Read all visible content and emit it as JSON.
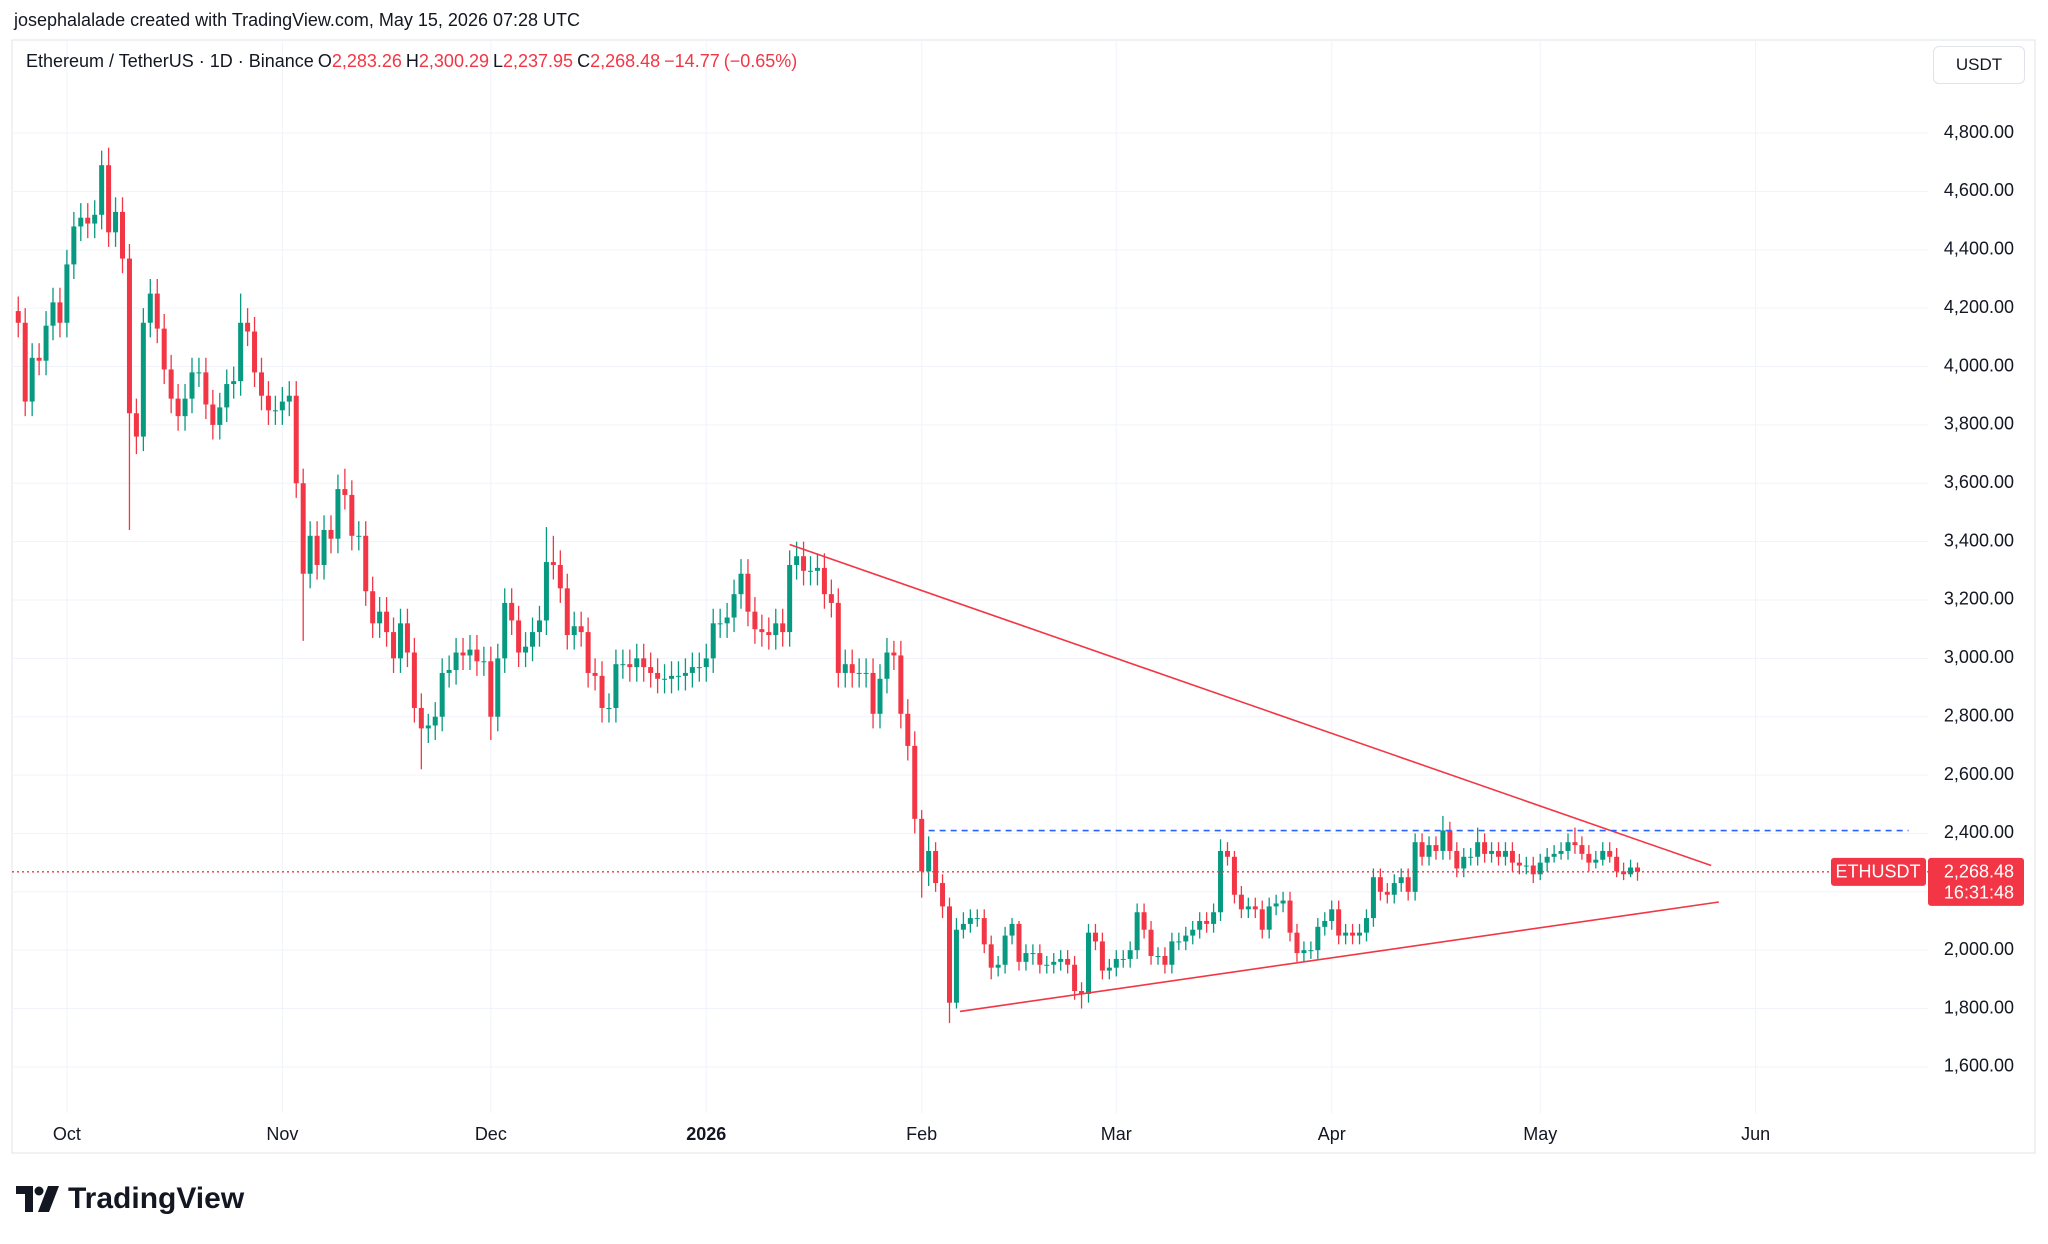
{
  "header": {
    "attribution": "josephalalade created with TradingView.com, May 15, 2026 07:28 UTC"
  },
  "footer": {
    "logo": "TradingView"
  },
  "chart_data": {
    "type": "candlestick",
    "title": "Ethereum / TetherUS · 1D · Binance",
    "currency": "USDT",
    "ohlc": [
      {
        "key": "O",
        "value": 2283.26,
        "label": "2,283.26"
      },
      {
        "key": "H",
        "value": 2300.29,
        "label": "2,300.29"
      },
      {
        "key": "L",
        "value": 2237.95,
        "label": "2,237.95"
      },
      {
        "key": "C",
        "value": 2268.48,
        "label": "2,268.48"
      }
    ],
    "change": {
      "value": -14.77,
      "label": "−14.77"
    },
    "change_pct": {
      "value": -0.65,
      "label": "(−0.65%)"
    },
    "last_price": {
      "symbol": "ETHUSDT",
      "value": 2268.48,
      "label": "2,268.48",
      "countdown": "16:31:48"
    },
    "up_color": "#089981",
    "down_color": "#f23645",
    "grid": true,
    "xlim": [
      -0.9,
      274.8
    ],
    "ylim": [
      1442,
      5119
    ],
    "xticks": [
      {
        "value": 7,
        "label": "Oct"
      },
      {
        "value": 38,
        "label": "Nov"
      },
      {
        "value": 68,
        "label": "Dec"
      },
      {
        "value": 99,
        "label": "2026"
      },
      {
        "value": 130,
        "label": "Feb"
      },
      {
        "value": 158,
        "label": "Mar"
      },
      {
        "value": 189,
        "label": "Apr"
      },
      {
        "value": 219,
        "label": "May"
      },
      {
        "value": 250,
        "label": "Jun"
      }
    ],
    "yticks": [
      {
        "value": 1600,
        "label": "1,600.00"
      },
      {
        "value": 1800,
        "label": "1,800.00"
      },
      {
        "value": 2000,
        "label": "2,000.00"
      },
      {
        "value": 2200,
        "label": "2,200.00"
      },
      {
        "value": 2400,
        "label": "2,400.00"
      },
      {
        "value": 2600,
        "label": "2,600.00"
      },
      {
        "value": 2800,
        "label": "2,800.00"
      },
      {
        "value": 3000,
        "label": "3,000.00"
      },
      {
        "value": 3200,
        "label": "3,200.00"
      },
      {
        "value": 3400,
        "label": "3,400.00"
      },
      {
        "value": 3600,
        "label": "3,600.00"
      },
      {
        "value": 3800,
        "label": "3,800.00"
      },
      {
        "value": 4000,
        "label": "4,000.00"
      },
      {
        "value": 4200,
        "label": "4,200.00"
      },
      {
        "value": 4400,
        "label": "4,400.00"
      },
      {
        "value": 4600,
        "label": "4,600.00"
      },
      {
        "value": 4800,
        "label": "4,800.00"
      }
    ],
    "open": [
      4190,
      4150,
      3880,
      4030,
      4020,
      4140,
      4220,
      4150,
      4350,
      4480,
      4510,
      4490,
      4520,
      4690,
      4460,
      4530,
      4370,
      3840,
      3760,
      4150,
      4250,
      4130,
      3990,
      3890,
      3830,
      3890,
      3980,
      3980,
      3870,
      3800,
      3860,
      3940,
      3950,
      4150,
      4120,
      3980,
      3900,
      3850,
      3850,
      3880,
      3900,
      3600,
      3290,
      3420,
      3320,
      3440,
      3410,
      3580,
      3560,
      3420,
      3420,
      3230,
      3120,
      3160,
      3090,
      3000,
      3120,
      3020,
      2830,
      2760,
      2770,
      2800,
      2950,
      2960,
      3020,
      3010,
      3030,
      2990,
      2990,
      2800,
      3000,
      3190,
      3130,
      3020,
      3040,
      3090,
      3130,
      3330,
      3320,
      3240,
      3080,
      3110,
      3090,
      2950,
      2940,
      2830,
      2830,
      2980,
      2980,
      2970,
      3000,
      2970,
      2950,
      2930,
      2930,
      2940,
      2940,
      2950,
      2970,
      2970,
      3000,
      3120,
      3120,
      3140,
      3220,
      3290,
      3160,
      3100,
      3090,
      3080,
      3120,
      3090,
      3320,
      3350,
      3300,
      3300,
      3310,
      3220,
      3190,
      2950,
      2980,
      2950,
      2950,
      2950,
      2810,
      2930,
      3020,
      3010,
      2810,
      2700,
      2450,
      2270,
      2340,
      2230,
      2150,
      1820,
      2070,
      2090,
      2110,
      2110,
      2020,
      1940,
      1950,
      2050,
      2090,
      1960,
      1990,
      1990,
      1950,
      1950,
      1960,
      1970,
      1950,
      1860,
      1850,
      2060,
      2030,
      1930,
      1940,
      1970,
      1970,
      2000,
      2130,
      2070,
      1980,
      1980,
      1950,
      2030,
      2030,
      2050,
      2070,
      2100,
      2090,
      2130,
      2340,
      2320,
      2190,
      2140,
      2150,
      2140,
      2070,
      2150,
      2160,
      2170,
      2060,
      1990,
      2000,
      2000,
      2080,
      2100,
      2140,
      2050,
      2060,
      2050,
      2060,
      2110,
      2250,
      2200,
      2190,
      2230,
      2250,
      2200,
      2370,
      2320,
      2360,
      2340,
      2410,
      2340,
      2280,
      2320,
      2320,
      2370,
      2330,
      2340,
      2320,
      2340,
      2300,
      2290,
      2290,
      2260,
      2300,
      2320,
      2330,
      2340,
      2370,
      2360,
      2330,
      2300,
      2310,
      2340,
      2320,
      2270,
      2260,
      2283.26
    ],
    "high": [
      4240,
      4200,
      4080,
      4080,
      4190,
      4270,
      4270,
      4400,
      4530,
      4560,
      4560,
      4570,
      4740,
      4750,
      4580,
      4580,
      4420,
      3890,
      4200,
      4300,
      4300,
      4180,
      4040,
      3940,
      3940,
      4030,
      4030,
      4030,
      3920,
      3910,
      3990,
      4000,
      4250,
      4200,
      4170,
      4030,
      3950,
      3900,
      3930,
      3950,
      3950,
      3650,
      3470,
      3470,
      3490,
      3490,
      3630,
      3650,
      3610,
      3470,
      3470,
      3280,
      3210,
      3210,
      3140,
      3170,
      3170,
      3070,
      2880,
      2810,
      2850,
      3000,
      3010,
      3070,
      3070,
      3080,
      3080,
      3040,
      3040,
      3050,
      3240,
      3240,
      3180,
      3090,
      3140,
      3180,
      3450,
      3420,
      3370,
      3290,
      3160,
      3160,
      3140,
      3000,
      2990,
      2880,
      3030,
      3030,
      3030,
      3050,
      3050,
      3020,
      3000,
      2980,
      2990,
      2990,
      3000,
      3020,
      3020,
      3050,
      3170,
      3170,
      3190,
      3270,
      3340,
      3340,
      3210,
      3150,
      3140,
      3170,
      3170,
      3370,
      3400,
      3400,
      3350,
      3360,
      3360,
      3270,
      3240,
      3030,
      3030,
      3000,
      3000,
      3000,
      2980,
      3070,
      3060,
      3060,
      2860,
      2750,
      2480,
      2390,
      2370,
      2260,
      2180,
      2110,
      2130,
      2140,
      2140,
      2140,
      2050,
      1980,
      2080,
      2110,
      2100,
      2020,
      2020,
      2020,
      1980,
      1990,
      2000,
      2000,
      1980,
      1890,
      2090,
      2090,
      2060,
      1970,
      2000,
      2000,
      2030,
      2160,
      2160,
      2100,
      2010,
      2010,
      2060,
      2060,
      2080,
      2100,
      2130,
      2130,
      2160,
      2380,
      2370,
      2340,
      2220,
      2180,
      2180,
      2170,
      2180,
      2190,
      2200,
      2200,
      2090,
      2030,
      2030,
      2110,
      2130,
      2170,
      2170,
      2090,
      2090,
      2090,
      2140,
      2280,
      2280,
      2230,
      2260,
      2280,
      2280,
      2400,
      2400,
      2390,
      2390,
      2460,
      2440,
      2370,
      2350,
      2350,
      2420,
      2400,
      2370,
      2370,
      2370,
      2370,
      2330,
      2320,
      2320,
      2330,
      2350,
      2360,
      2370,
      2400,
      2420,
      2390,
      2360,
      2340,
      2370,
      2370,
      2350,
      2300,
      2310,
      2300.29
    ],
    "low": [
      4100,
      3830,
      3830,
      3970,
      3970,
      4090,
      4100,
      4100,
      4300,
      4430,
      4440,
      4440,
      4470,
      4410,
      4410,
      4320,
      3440,
      3700,
      3710,
      4100,
      4080,
      3940,
      3840,
      3780,
      3780,
      3840,
      3930,
      3820,
      3750,
      3750,
      3810,
      3890,
      3900,
      4070,
      3930,
      3850,
      3800,
      3800,
      3800,
      3830,
      3550,
      3060,
      3240,
      3270,
      3270,
      3360,
      3360,
      3510,
      3370,
      3370,
      3180,
      3070,
      3070,
      3040,
      2950,
      2950,
      2970,
      2780,
      2620,
      2710,
      2720,
      2750,
      2900,
      2910,
      2960,
      2960,
      2940,
      2940,
      2720,
      2750,
      2950,
      3080,
      2970,
      2970,
      2990,
      3040,
      3080,
      3270,
      3190,
      3030,
      3030,
      3040,
      2900,
      2890,
      2780,
      2780,
      2780,
      2930,
      2920,
      2920,
      2920,
      2900,
      2880,
      2880,
      2880,
      2890,
      2890,
      2900,
      2920,
      2920,
      2950,
      3070,
      3070,
      3090,
      3170,
      3110,
      3050,
      3040,
      3030,
      3030,
      3040,
      3040,
      3270,
      3250,
      3250,
      3250,
      3170,
      3140,
      2900,
      2900,
      2900,
      2900,
      2900,
      2760,
      2760,
      2880,
      2960,
      2760,
      2650,
      2400,
      2180,
      2220,
      2200,
      2110,
      1750,
      1800,
      2040,
      2060,
      2080,
      1990,
      1900,
      1910,
      1920,
      2020,
      1930,
      1930,
      1950,
      1920,
      1920,
      1920,
      1930,
      1920,
      1830,
      1800,
      1820,
      2000,
      1900,
      1900,
      1910,
      1940,
      1940,
      1970,
      2040,
      1950,
      1950,
      1920,
      1920,
      2000,
      2000,
      2020,
      2040,
      2060,
      2060,
      2100,
      2290,
      2160,
      2110,
      2110,
      2110,
      2040,
      2040,
      2120,
      2130,
      2030,
      1960,
      1960,
      1970,
      1970,
      2050,
      2070,
      2020,
      2020,
      2020,
      2020,
      2030,
      2080,
      2170,
      2160,
      2160,
      2200,
      2170,
      2170,
      2290,
      2290,
      2310,
      2310,
      2310,
      2250,
      2250,
      2290,
      2290,
      2300,
      2300,
      2290,
      2290,
      2270,
      2260,
      2260,
      2230,
      2240,
      2270,
      2300,
      2310,
      2310,
      2330,
      2310,
      2270,
      2280,
      2290,
      2300,
      2250,
      2240,
      2250,
      2237.95
    ],
    "close": [
      4150,
      3880,
      4030,
      4020,
      4140,
      4220,
      4150,
      4350,
      4480,
      4510,
      4490,
      4520,
      4690,
      4460,
      4530,
      4370,
      3840,
      3760,
      4150,
      4250,
      4130,
      3990,
      3890,
      3830,
      3890,
      3980,
      3980,
      3870,
      3800,
      3860,
      3940,
      3950,
      4150,
      4120,
      3980,
      3900,
      3850,
      3850,
      3880,
      3900,
      3600,
      3290,
      3420,
      3320,
      3440,
      3410,
      3580,
      3560,
      3420,
      3420,
      3230,
      3120,
      3160,
      3090,
      3000,
      3120,
      3020,
      2830,
      2760,
      2770,
      2800,
      2950,
      2960,
      3020,
      3010,
      3030,
      2990,
      2990,
      2800,
      3000,
      3190,
      3130,
      3020,
      3040,
      3090,
      3130,
      3330,
      3320,
      3240,
      3080,
      3110,
      3090,
      2950,
      2940,
      2830,
      2830,
      2980,
      2980,
      2970,
      3000,
      2970,
      2950,
      2930,
      2930,
      2940,
      2940,
      2950,
      2970,
      2970,
      3000,
      3120,
      3120,
      3140,
      3220,
      3290,
      3160,
      3100,
      3090,
      3080,
      3120,
      3090,
      3320,
      3350,
      3300,
      3300,
      3310,
      3220,
      3190,
      2950,
      2980,
      2950,
      2950,
      2950,
      2810,
      2930,
      3020,
      3010,
      2810,
      2700,
      2450,
      2270,
      2340,
      2230,
      2150,
      1820,
      2070,
      2090,
      2110,
      2110,
      2020,
      1940,
      1950,
      2050,
      2090,
      1960,
      1990,
      1990,
      1950,
      1950,
      1960,
      1970,
      1950,
      1860,
      1850,
      2060,
      2030,
      1930,
      1940,
      1970,
      1970,
      2000,
      2130,
      2070,
      1980,
      1980,
      1950,
      2030,
      2030,
      2050,
      2070,
      2100,
      2090,
      2130,
      2340,
      2320,
      2190,
      2140,
      2150,
      2140,
      2070,
      2150,
      2160,
      2170,
      2060,
      1990,
      2000,
      2000,
      2080,
      2100,
      2140,
      2050,
      2060,
      2050,
      2060,
      2110,
      2250,
      2200,
      2190,
      2230,
      2250,
      2200,
      2370,
      2320,
      2360,
      2340,
      2410,
      2340,
      2280,
      2320,
      2320,
      2370,
      2330,
      2340,
      2320,
      2340,
      2300,
      2290,
      2290,
      2260,
      2300,
      2320,
      2330,
      2340,
      2370,
      2360,
      2330,
      2300,
      2310,
      2340,
      2320,
      2270,
      2260,
      2283.26,
      2268.48
    ],
    "drawings": [
      {
        "type": "trend_line",
        "color": "#f23645",
        "x": [
          111,
          243.6
        ],
        "y": [
          3390,
          2290
        ]
      },
      {
        "type": "trend_line",
        "color": "#f23645",
        "x": [
          135.5,
          244.7
        ],
        "y": [
          1790,
          2165
        ]
      },
      {
        "type": "horizontal_ray",
        "color": "#2962ff",
        "dashed": true,
        "x": [
          131,
          272
        ],
        "y": [
          2410,
          2410
        ]
      }
    ]
  }
}
